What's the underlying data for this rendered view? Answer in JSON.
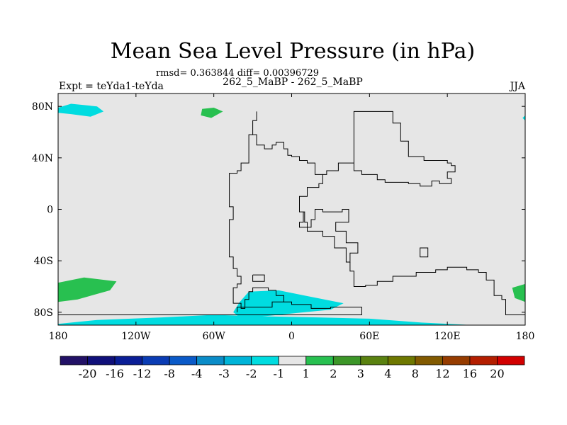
{
  "chart_data": {
    "type": "heatmap",
    "title": "Mean Sea Level Pressure (in hPa)",
    "stats": "rmsd= 0.363844 diff= 0.00396729",
    "subtitle": "262_5_MaBP - 262_5_MaBP",
    "left_label": "Expt = teYda1-teYda",
    "right_label": "JJA",
    "x_range": [
      -180,
      180
    ],
    "y_range": [
      -90,
      90
    ],
    "x_ticks": [
      {
        "value": -180,
        "label": "180"
      },
      {
        "value": -120,
        "label": "120W"
      },
      {
        "value": -60,
        "label": "60W"
      },
      {
        "value": 0,
        "label": "0"
      },
      {
        "value": 60,
        "label": "60E"
      },
      {
        "value": 120,
        "label": "120E"
      },
      {
        "value": 180,
        "label": "180"
      }
    ],
    "y_ticks": [
      {
        "value": 80,
        "label": "80N"
      },
      {
        "value": 40,
        "label": "40N"
      },
      {
        "value": 0,
        "label": "0"
      },
      {
        "value": -40,
        "label": "40S"
      },
      {
        "value": -80,
        "label": "80S"
      }
    ],
    "colorbar": {
      "colors": [
        "#221166",
        "#10107a",
        "#0a1e96",
        "#0a3cb4",
        "#0a5ac8",
        "#0a8cc8",
        "#00b4d8",
        "#00dce0",
        "#e6e6e6",
        "#28c050",
        "#3c9628",
        "#5a8210",
        "#6e7800",
        "#825a00",
        "#963c00",
        "#b41e00",
        "#d20000"
      ],
      "labels": [
        "-20",
        "-16",
        "-12",
        "-8",
        "-4",
        "-3",
        "-2",
        "-1",
        "1",
        "2",
        "3",
        "4",
        "8",
        "12",
        "16",
        "20"
      ]
    },
    "background_color": "#e6e6e6",
    "regions": [
      {
        "level": "-2 to -1",
        "color": "#00dce0",
        "points": [
          [
            -180,
            79
          ],
          [
            -170,
            82
          ],
          [
            -150,
            80
          ],
          [
            -145,
            76
          ],
          [
            -155,
            72
          ],
          [
            -170,
            74
          ],
          [
            -180,
            75
          ]
        ]
      },
      {
        "level": "1 to 2",
        "color": "#28c050",
        "points": [
          [
            -69,
            78
          ],
          [
            -60,
            79
          ],
          [
            -53,
            76
          ],
          [
            -62,
            71
          ],
          [
            -70,
            73
          ]
        ]
      },
      {
        "level": "1 to 2",
        "color": "#28c050",
        "points": [
          [
            -180,
            -57
          ],
          [
            -160,
            -53
          ],
          [
            -135,
            -56
          ],
          [
            -140,
            -63
          ],
          [
            -165,
            -70
          ],
          [
            -180,
            -72
          ]
        ]
      },
      {
        "level": "1 to 2",
        "color": "#28c050",
        "points": [
          [
            170,
            -61
          ],
          [
            180,
            -58
          ],
          [
            180,
            -72
          ],
          [
            172,
            -69
          ]
        ]
      },
      {
        "level": "-2 to -1",
        "color": "#00dce0",
        "points": [
          [
            -40,
            -72
          ],
          [
            -33,
            -64
          ],
          [
            -10,
            -63
          ],
          [
            10,
            -67
          ],
          [
            30,
            -71
          ],
          [
            40,
            -73
          ],
          [
            30,
            -78
          ],
          [
            10,
            -80
          ],
          [
            -20,
            -83
          ],
          [
            -40,
            -84
          ],
          [
            -45,
            -80
          ]
        ]
      },
      {
        "level": "-2 to -1",
        "color": "#00dce0",
        "points": [
          [
            -180,
            -89
          ],
          [
            -150,
            -86
          ],
          [
            -100,
            -84
          ],
          [
            -60,
            -82
          ],
          [
            -30,
            -83
          ],
          [
            20,
            -84
          ],
          [
            60,
            -85
          ],
          [
            100,
            -88
          ],
          [
            140,
            -90
          ],
          [
            -180,
            -90
          ]
        ]
      },
      {
        "level": "-2 to -1",
        "color": "#00dce0",
        "points": [
          [
            178,
            71
          ],
          [
            180,
            69
          ],
          [
            180,
            73
          ]
        ]
      }
    ],
    "coastlines": [
      [
        [
          -27,
          76
        ],
        [
          -27,
          69
        ],
        [
          -30,
          69
        ],
        [
          -30,
          58
        ],
        [
          -27,
          58
        ],
        [
          -27,
          50
        ],
        [
          -21,
          50
        ],
        [
          -21,
          47
        ],
        [
          -15,
          47
        ],
        [
          -15,
          50
        ],
        [
          -12,
          50
        ],
        [
          -12,
          52
        ],
        [
          -6,
          52
        ],
        [
          -6,
          47
        ],
        [
          -3,
          47
        ],
        [
          -3,
          42
        ],
        [
          0,
          42
        ],
        [
          0,
          41
        ],
        [
          6,
          41
        ],
        [
          6,
          38
        ],
        [
          12,
          38
        ],
        [
          12,
          36
        ],
        [
          18,
          36
        ],
        [
          18,
          27
        ],
        [
          24,
          27
        ],
        [
          24,
          20
        ],
        [
          21,
          20
        ],
        [
          21,
          17
        ],
        [
          12,
          17
        ],
        [
          12,
          10
        ],
        [
          6,
          10
        ],
        [
          6,
          -2
        ],
        [
          9,
          -2
        ],
        [
          9,
          -10
        ],
        [
          6,
          -10
        ],
        [
          6,
          -14
        ],
        [
          12,
          -14
        ],
        [
          12,
          -17
        ],
        [
          24,
          -17
        ],
        [
          24,
          -21
        ],
        [
          33,
          -21
        ],
        [
          33,
          -30
        ],
        [
          42,
          -30
        ],
        [
          42,
          -41
        ],
        [
          45,
          -41
        ],
        [
          45,
          -34
        ],
        [
          51,
          -34
        ],
        [
          51,
          -26
        ],
        [
          42,
          -26
        ],
        [
          42,
          -17
        ],
        [
          34,
          -17
        ],
        [
          34,
          -10
        ],
        [
          44,
          -10
        ],
        [
          44,
          0
        ],
        [
          39,
          0
        ],
        [
          39,
          -2
        ],
        [
          24,
          -2
        ],
        [
          24,
          0
        ],
        [
          18,
          0
        ],
        [
          18,
          -8
        ],
        [
          15,
          -8
        ],
        [
          15,
          -14
        ],
        [
          12,
          -14
        ],
        [
          12,
          -10
        ],
        [
          10,
          -10
        ],
        [
          10,
          -2
        ],
        [
          6,
          -2
        ]
      ],
      [
        [
          24,
          27
        ],
        [
          27,
          27
        ],
        [
          27,
          30
        ],
        [
          36,
          30
        ],
        [
          36,
          36
        ],
        [
          48,
          36
        ],
        [
          48,
          76
        ],
        [
          78,
          76
        ],
        [
          78,
          67
        ],
        [
          84,
          67
        ],
        [
          84,
          53
        ],
        [
          90,
          53
        ],
        [
          90,
          41
        ],
        [
          102,
          41
        ],
        [
          102,
          38
        ],
        [
          120,
          38
        ],
        [
          120,
          36
        ],
        [
          123,
          36
        ],
        [
          123,
          34
        ],
        [
          126,
          34
        ],
        [
          126,
          29
        ],
        [
          120,
          29
        ],
        [
          120,
          24
        ],
        [
          123,
          24
        ],
        [
          123,
          20
        ],
        [
          114,
          20
        ],
        [
          114,
          22
        ],
        [
          108,
          22
        ],
        [
          108,
          18
        ],
        [
          99,
          18
        ],
        [
          99,
          20
        ],
        [
          90,
          20
        ],
        [
          90,
          21
        ],
        [
          72,
          21
        ],
        [
          72,
          23
        ],
        [
          66,
          23
        ],
        [
          66,
          27
        ],
        [
          54,
          27
        ],
        [
          54,
          30
        ],
        [
          48,
          30
        ],
        [
          48,
          36
        ]
      ],
      [
        [
          -30,
          58
        ],
        [
          -33,
          58
        ],
        [
          -33,
          36
        ],
        [
          -39,
          36
        ],
        [
          -39,
          30
        ],
        [
          -42,
          30
        ],
        [
          -42,
          28
        ],
        [
          -48,
          28
        ],
        [
          -48,
          2
        ],
        [
          -45,
          2
        ],
        [
          -45,
          -8
        ],
        [
          -48,
          -8
        ],
        [
          -48,
          -37
        ],
        [
          -45,
          -37
        ],
        [
          -45,
          -46
        ],
        [
          -42,
          -46
        ],
        [
          -42,
          -52
        ],
        [
          -39,
          -52
        ],
        [
          -39,
          -58
        ],
        [
          -42,
          -58
        ],
        [
          -42,
          -61
        ],
        [
          -45,
          -61
        ],
        [
          -45,
          -73
        ],
        [
          -39,
          -73
        ],
        [
          -39,
          -77
        ],
        [
          -36,
          -77
        ],
        [
          -36,
          -70
        ],
        [
          -33,
          -70
        ],
        [
          -33,
          -64
        ],
        [
          -30,
          -64
        ],
        [
          -30,
          -61
        ],
        [
          -18,
          -61
        ],
        [
          -18,
          -63
        ],
        [
          -12,
          -63
        ],
        [
          -12,
          -67
        ],
        [
          -6,
          -67
        ],
        [
          -6,
          -72
        ],
        [
          0,
          -72
        ],
        [
          0,
          -74
        ],
        [
          15,
          -74
        ],
        [
          15,
          -77
        ],
        [
          30,
          -77
        ],
        [
          30,
          -76
        ],
        [
          54,
          -76
        ],
        [
          54,
          -82
        ],
        [
          -180,
          -82
        ]
      ],
      [
        [
          -30,
          -51
        ],
        [
          -21,
          -51
        ],
        [
          -21,
          -56
        ],
        [
          -30,
          -56
        ],
        [
          -30,
          -51
        ]
      ],
      [
        [
          99,
          -36
        ],
        [
          99,
          -30
        ],
        [
          105,
          -30
        ],
        [
          105,
          -37
        ],
        [
          99,
          -37
        ],
        [
          99,
          -36
        ]
      ],
      [
        [
          45,
          -41
        ],
        [
          45,
          -48
        ],
        [
          48,
          -48
        ],
        [
          48,
          -60
        ],
        [
          57,
          -60
        ],
        [
          57,
          -59
        ],
        [
          66,
          -59
        ],
        [
          66,
          -56
        ],
        [
          78,
          -56
        ],
        [
          78,
          -52
        ],
        [
          96,
          -52
        ],
        [
          96,
          -49
        ],
        [
          111,
          -49
        ],
        [
          111,
          -47
        ],
        [
          120,
          -47
        ],
        [
          120,
          -45
        ],
        [
          135,
          -45
        ],
        [
          135,
          -47
        ],
        [
          144,
          -47
        ],
        [
          144,
          -49
        ],
        [
          150,
          -49
        ],
        [
          150,
          -55
        ],
        [
          156,
          -55
        ],
        [
          156,
          -67
        ],
        [
          162,
          -67
        ],
        [
          162,
          -70
        ],
        [
          165,
          -70
        ],
        [
          165,
          -82
        ],
        [
          180,
          -82
        ]
      ],
      [
        [
          -6,
          -72
        ],
        [
          -15,
          -72
        ],
        [
          -15,
          -76
        ],
        [
          -42,
          -76
        ],
        [
          -42,
          -80
        ]
      ]
    ]
  }
}
